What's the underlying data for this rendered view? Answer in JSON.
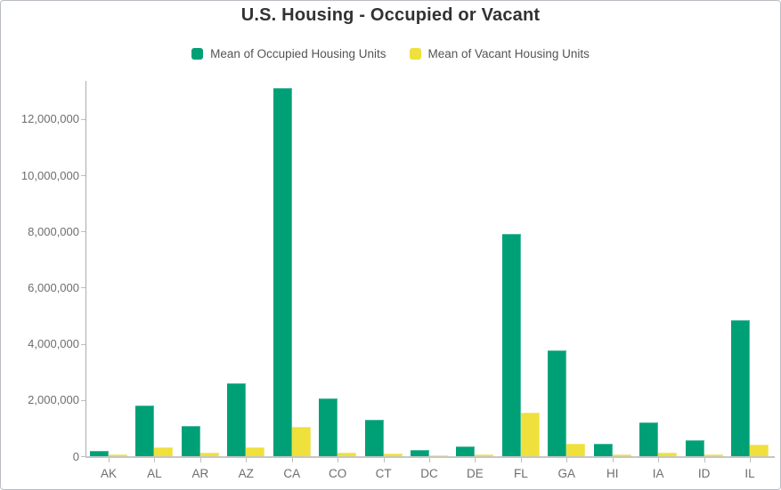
{
  "title": "U.S. Housing - Occupied or Vacant",
  "legend": [
    {
      "label": "Mean of Occupied Housing Units",
      "color": "#00A077"
    },
    {
      "label": "Mean of Vacant Housing Units",
      "color": "#EFE03C"
    }
  ],
  "colors": {
    "occupied": "#00A077",
    "vacant": "#EFE03C",
    "title_text": "#323232",
    "axis_text": "#6e6e6e",
    "legend_text": "#545454",
    "axis_line": "#ababab"
  },
  "chart_data": {
    "type": "bar",
    "title": "U.S. Housing - Occupied or Vacant",
    "categories": [
      "AK",
      "AL",
      "AR",
      "AZ",
      "CA",
      "CO",
      "CT",
      "DC",
      "DE",
      "FL",
      "GA",
      "HI",
      "IA",
      "ID",
      "IL"
    ],
    "series": [
      {
        "name": "Mean of Occupied Housing Units",
        "color": "#00A077",
        "values": [
          200000,
          1820000,
          1090000,
          2590000,
          13120000,
          2070000,
          1300000,
          210000,
          340000,
          7920000,
          3770000,
          450000,
          1200000,
          580000,
          4840000
        ]
      },
      {
        "name": "Mean of Vacant Housing Units",
        "color": "#EFE03C",
        "values": [
          50000,
          310000,
          130000,
          330000,
          1050000,
          140000,
          90000,
          30000,
          60000,
          1560000,
          430000,
          70000,
          120000,
          70000,
          420000
        ]
      }
    ],
    "xlabel": "",
    "ylabel": "",
    "ylim": [
      0,
      13360000
    ],
    "yticks": [
      0,
      2000000,
      4000000,
      6000000,
      8000000,
      10000000,
      12000000
    ],
    "ytick_labels": [
      "0",
      "2,000,000",
      "4,000,000",
      "6,000,000",
      "8,000,000",
      "10,000,000",
      "12,000,000"
    ],
    "legend_position": "top",
    "grid": false
  }
}
